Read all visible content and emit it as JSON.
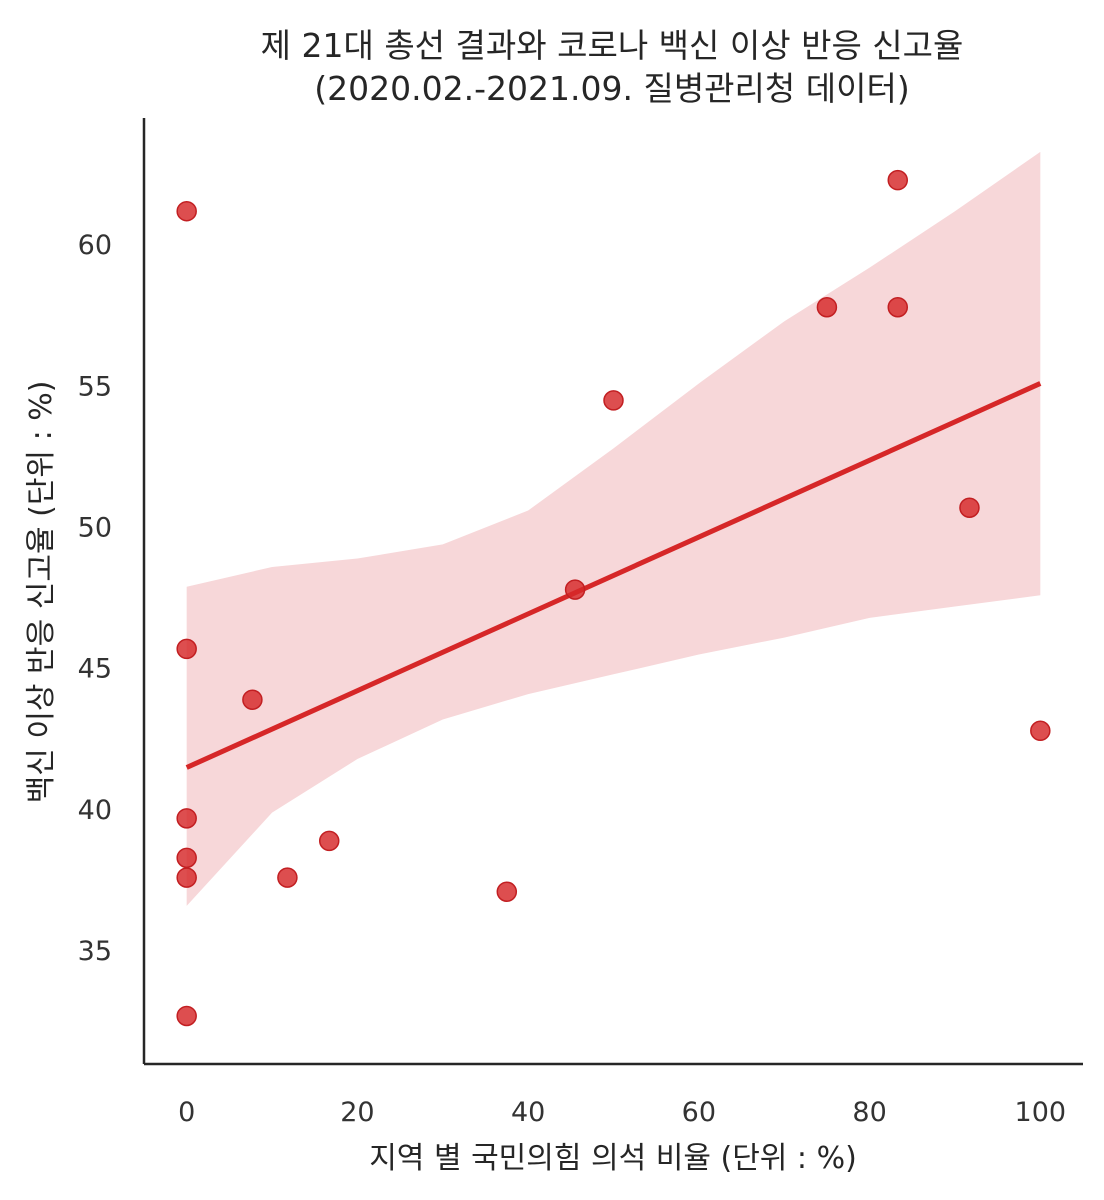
{
  "chart_data": {
    "type": "scatter",
    "title_lines": [
      "제 21대 총선 결과와 코로나 백신 이상 반응 신고율",
      "(2020.02.-2021.09. 질병관리청 데이터)"
    ],
    "xlabel": "지역 별 국민의힘 의석 비율 (단위 : %)",
    "ylabel": "백신 이상 반응 신고율 (단위 : %)",
    "xlim": [
      -5,
      105
    ],
    "ylim": [
      31,
      64.5
    ],
    "xticks": [
      0,
      20,
      40,
      60,
      80,
      100
    ],
    "yticks": [
      35,
      40,
      45,
      50,
      55,
      60
    ],
    "grid": false,
    "colors": {
      "points": "#d62728",
      "regression_line": "#d62728",
      "confidence_band": "#f7d7d9",
      "axes": "#262626"
    },
    "points": [
      {
        "x": 0,
        "y": 61.2
      },
      {
        "x": 0,
        "y": 45.7
      },
      {
        "x": 0,
        "y": 39.7
      },
      {
        "x": 0,
        "y": 38.3
      },
      {
        "x": 0,
        "y": 37.6
      },
      {
        "x": 0,
        "y": 32.7
      },
      {
        "x": 7.7,
        "y": 43.9
      },
      {
        "x": 11.8,
        "y": 37.6
      },
      {
        "x": 16.7,
        "y": 38.9
      },
      {
        "x": 37.5,
        "y": 37.1
      },
      {
        "x": 45.5,
        "y": 47.8
      },
      {
        "x": 50,
        "y": 54.5
      },
      {
        "x": 75,
        "y": 57.8
      },
      {
        "x": 83.3,
        "y": 62.3
      },
      {
        "x": 83.3,
        "y": 57.8
      },
      {
        "x": 91.7,
        "y": 50.7
      },
      {
        "x": 100,
        "y": 42.8
      }
    ],
    "regression_line": {
      "x": [
        0,
        100
      ],
      "y": [
        41.5,
        55.1
      ]
    },
    "confidence_band": {
      "x": [
        0,
        10,
        20,
        30,
        40,
        50,
        60,
        70,
        80,
        90,
        100
      ],
      "upper": [
        47.9,
        48.6,
        48.9,
        49.4,
        50.6,
        52.8,
        55.1,
        57.3,
        59.2,
        61.2,
        63.3
      ],
      "lower": [
        36.6,
        39.9,
        41.8,
        43.2,
        44.1,
        44.8,
        45.5,
        46.1,
        46.8,
        47.2,
        47.6
      ]
    }
  }
}
